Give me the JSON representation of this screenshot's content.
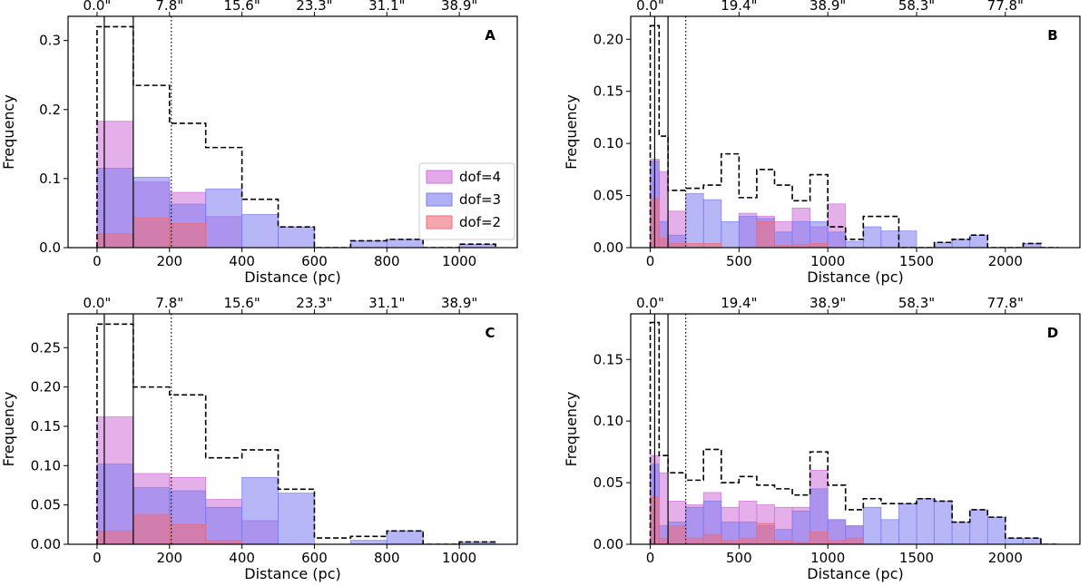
{
  "colors": {
    "dof4": "#d070d8",
    "dof3": "#7b7bf0",
    "dof2": "#f06c78",
    "envelope": "#000000"
  },
  "legend": [
    {
      "key": "dof4",
      "label": "dof=4"
    },
    {
      "key": "dof3",
      "label": "dof=3"
    },
    {
      "key": "dof2",
      "label": "dof=2"
    }
  ],
  "chart_data": [
    {
      "type": "bar",
      "panel": "A",
      "xlabel": "Distance (pc)",
      "ylabel": "Frequency",
      "xlim": [
        -80,
        1160
      ],
      "ylim": [
        0,
        0.335
      ],
      "xticks": [
        0,
        200,
        400,
        600,
        800,
        1000
      ],
      "xtick_labels": [
        "0",
        "200",
        "400",
        "600",
        "800",
        "1000"
      ],
      "yticks": [
        0.0,
        0.1,
        0.2,
        0.3
      ],
      "ytick_labels": [
        "0.0",
        "0.1",
        "0.2",
        "0.3"
      ],
      "top_ticks": [
        0,
        200,
        400,
        600,
        800,
        1000
      ],
      "top_tick_labels": [
        "0.0\"",
        "7.8\"",
        "15.6\"",
        "23.3\"",
        "31.1\"",
        "38.9\""
      ],
      "vlines": [
        {
          "x": 20,
          "style": "solid"
        },
        {
          "x": 100,
          "style": "solid"
        },
        {
          "x": 205,
          "style": "dotted"
        }
      ],
      "bin_edges": [
        0,
        100,
        200,
        300,
        400,
        500,
        600,
        700,
        800,
        900,
        1000,
        1100
      ],
      "envelope": [
        0.32,
        0.235,
        0.18,
        0.145,
        0.07,
        0.03,
        0.0,
        0.01,
        0.012,
        0.0,
        0.005
      ],
      "series": [
        {
          "name": "dof=4",
          "key": "dof4",
          "values": [
            0.183,
            0.095,
            0.08,
            0.045,
            0.0,
            0.0,
            0.0,
            0.0,
            0.0,
            0.0,
            0.0
          ]
        },
        {
          "name": "dof=3",
          "key": "dof3",
          "values": [
            0.115,
            0.102,
            0.063,
            0.085,
            0.048,
            0.03,
            0.0,
            0.01,
            0.012,
            0.0,
            0.005
          ]
        },
        {
          "name": "dof=2",
          "key": "dof2",
          "values": [
            0.02,
            0.043,
            0.035,
            0.0,
            0.0,
            0.0,
            0.0,
            0.0,
            0.0,
            0.0,
            0.0
          ]
        }
      ],
      "show_legend": true
    },
    {
      "type": "bar",
      "panel": "B",
      "xlabel": "Distance (pc)",
      "ylabel": "Frequency",
      "xlim": [
        -110,
        2420
      ],
      "ylim": [
        0,
        0.222
      ],
      "xticks": [
        0,
        500,
        1000,
        1500,
        2000
      ],
      "xtick_labels": [
        "0",
        "500",
        "1000",
        "1500",
        "2000"
      ],
      "yticks": [
        0.0,
        0.05,
        0.1,
        0.15,
        0.2
      ],
      "ytick_labels": [
        "0.00",
        "0.05",
        "0.10",
        "0.15",
        "0.20"
      ],
      "top_ticks": [
        0,
        500,
        1000,
        1500,
        2000
      ],
      "top_tick_labels": [
        "0.0\"",
        "19.4\"",
        "38.9\"",
        "58.3\"",
        "77.8\""
      ],
      "vlines": [
        {
          "x": 25,
          "style": "solid"
        },
        {
          "x": 100,
          "style": "solid"
        },
        {
          "x": 200,
          "style": "dotted"
        }
      ],
      "bin_edges": [
        0,
        50,
        100,
        200,
        300,
        400,
        500,
        600,
        700,
        800,
        900,
        1000,
        1100,
        1200,
        1300,
        1400,
        1500,
        1600,
        1700,
        1800,
        1900,
        2000,
        2100,
        2200,
        2300
      ],
      "envelope": [
        0.213,
        0.107,
        0.055,
        0.057,
        0.06,
        0.09,
        0.048,
        0.075,
        0.06,
        0.045,
        0.07,
        0.02,
        0.008,
        0.03,
        0.03,
        0.0,
        0.0,
        0.005,
        0.008,
        0.012,
        0.0,
        0.0,
        0.004,
        0.0
      ],
      "series": [
        {
          "name": "dof=4",
          "key": "dof4",
          "values": [
            0.085,
            0.073,
            0.035,
            0.0,
            0.0,
            0.0,
            0.033,
            0.03,
            0.025,
            0.038,
            0.02,
            0.042,
            0.0,
            0.0,
            0.0,
            0.0,
            0.0,
            0.0,
            0.0,
            0.0,
            0.0,
            0.0,
            0.0,
            0.0
          ]
        },
        {
          "name": "dof=3",
          "key": "dof3",
          "values": [
            0.083,
            0.025,
            0.012,
            0.052,
            0.046,
            0.025,
            0.03,
            0.028,
            0.015,
            0.025,
            0.025,
            0.015,
            0.006,
            0.02,
            0.016,
            0.016,
            0.0,
            0.005,
            0.008,
            0.012,
            0.0,
            0.0,
            0.004,
            0.0
          ]
        },
        {
          "name": "dof=2",
          "key": "dof2",
          "values": [
            0.047,
            0.009,
            0.004,
            0.004,
            0.004,
            0.0,
            0.0,
            0.025,
            0.002,
            0.003,
            0.004,
            0.0,
            0.0,
            0.0,
            0.0,
            0.0,
            0.0,
            0.0,
            0.0,
            0.0,
            0.0,
            0.0,
            0.0,
            0.0
          ]
        }
      ],
      "show_legend": false
    },
    {
      "type": "bar",
      "panel": "C",
      "xlabel": "Distance (pc)",
      "ylabel": "Frequency",
      "xlim": [
        -80,
        1160
      ],
      "ylim": [
        0,
        0.293
      ],
      "xticks": [
        0,
        200,
        400,
        600,
        800,
        1000
      ],
      "xtick_labels": [
        "0",
        "200",
        "400",
        "600",
        "800",
        "1000"
      ],
      "yticks": [
        0.0,
        0.05,
        0.1,
        0.15,
        0.2,
        0.25
      ],
      "ytick_labels": [
        "0.00",
        "0.05",
        "0.10",
        "0.15",
        "0.20",
        "0.25"
      ],
      "top_ticks": [
        0,
        200,
        400,
        600,
        800,
        1000
      ],
      "top_tick_labels": [
        "0.0\"",
        "7.8\"",
        "15.6\"",
        "23.3\"",
        "31.1\"",
        "38.9\""
      ],
      "vlines": [
        {
          "x": 20,
          "style": "solid"
        },
        {
          "x": 100,
          "style": "solid"
        },
        {
          "x": 205,
          "style": "dotted"
        }
      ],
      "bin_edges": [
        0,
        100,
        200,
        300,
        400,
        500,
        600,
        700,
        800,
        900,
        1000,
        1100
      ],
      "envelope": [
        0.28,
        0.2,
        0.19,
        0.11,
        0.12,
        0.07,
        0.008,
        0.01,
        0.017,
        0.0,
        0.003
      ],
      "series": [
        {
          "name": "dof=4",
          "key": "dof4",
          "values": [
            0.162,
            0.09,
            0.085,
            0.057,
            0.03,
            0.0,
            0.0,
            0.0,
            0.0,
            0.0,
            0.0
          ]
        },
        {
          "name": "dof=3",
          "key": "dof3",
          "values": [
            0.102,
            0.072,
            0.068,
            0.047,
            0.085,
            0.065,
            0.0,
            0.005,
            0.017,
            0.0,
            0.003
          ]
        },
        {
          "name": "dof=2",
          "key": "dof2",
          "values": [
            0.017,
            0.038,
            0.025,
            0.005,
            0.0,
            0.0,
            0.0,
            0.0,
            0.0,
            0.0,
            0.0
          ]
        }
      ],
      "show_legend": false
    },
    {
      "type": "bar",
      "panel": "D",
      "xlabel": "Distance (pc)",
      "ylabel": "Frequency",
      "xlim": [
        -110,
        2420
      ],
      "ylim": [
        0,
        0.187
      ],
      "xticks": [
        0,
        500,
        1000,
        1500,
        2000
      ],
      "xtick_labels": [
        "0",
        "500",
        "1000",
        "1500",
        "2000"
      ],
      "yticks": [
        0.0,
        0.05,
        0.1,
        0.15
      ],
      "ytick_labels": [
        "0.00",
        "0.05",
        "0.10",
        "0.15"
      ],
      "top_ticks": [
        0,
        500,
        1000,
        1500,
        2000
      ],
      "top_tick_labels": [
        "0.0\"",
        "19.4\"",
        "38.9\"",
        "58.3\"",
        "77.8\""
      ],
      "vlines": [
        {
          "x": 25,
          "style": "solid"
        },
        {
          "x": 100,
          "style": "solid"
        },
        {
          "x": 200,
          "style": "dotted"
        }
      ],
      "bin_edges": [
        0,
        50,
        100,
        200,
        300,
        400,
        500,
        600,
        700,
        800,
        900,
        1000,
        1100,
        1200,
        1300,
        1400,
        1500,
        1600,
        1700,
        1800,
        1900,
        2000,
        2100,
        2200,
        2300
      ],
      "envelope": [
        0.18,
        0.072,
        0.058,
        0.052,
        0.077,
        0.05,
        0.055,
        0.048,
        0.045,
        0.04,
        0.075,
        0.048,
        0.028,
        0.037,
        0.033,
        0.033,
        0.037,
        0.035,
        0.018,
        0.028,
        0.022,
        0.005,
        0.005,
        0.0
      ],
      "series": [
        {
          "name": "dof=4",
          "key": "dof4",
          "values": [
            0.072,
            0.058,
            0.035,
            0.032,
            0.042,
            0.03,
            0.035,
            0.032,
            0.03,
            0.03,
            0.06,
            0.02,
            0.015,
            0.0,
            0.0,
            0.0,
            0.0,
            0.0,
            0.0,
            0.0,
            0.0,
            0.0,
            0.0,
            0.0
          ]
        },
        {
          "name": "dof=3",
          "key": "dof3",
          "values": [
            0.065,
            0.015,
            0.018,
            0.03,
            0.035,
            0.018,
            0.018,
            0.015,
            0.012,
            0.027,
            0.045,
            0.02,
            0.015,
            0.03,
            0.02,
            0.033,
            0.037,
            0.035,
            0.018,
            0.028,
            0.022,
            0.005,
            0.005,
            0.0
          ]
        },
        {
          "name": "dof=2",
          "key": "dof2",
          "values": [
            0.038,
            0.005,
            0.015,
            0.005,
            0.008,
            0.003,
            0.005,
            0.017,
            0.003,
            0.002,
            0.01,
            0.003,
            0.005,
            0.0,
            0.0,
            0.0,
            0.0,
            0.0,
            0.0,
            0.0,
            0.0,
            0.0,
            0.0,
            0.0
          ]
        }
      ],
      "show_legend": false
    }
  ]
}
